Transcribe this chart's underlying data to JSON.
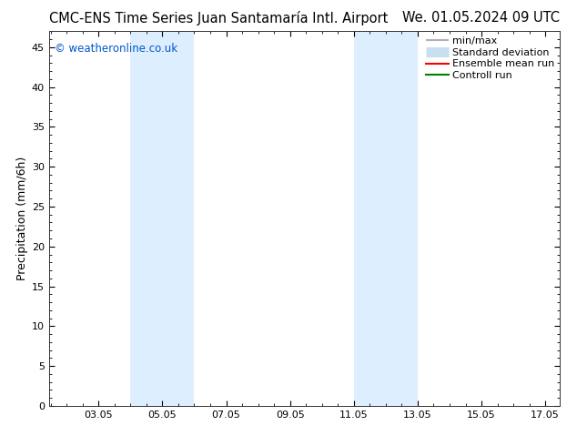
{
  "title_left": "CMC-ENS Time Series Juan Santamaría Intl. Airport",
  "title_right": "We. 01.05.2024 09 UTC",
  "ylabel": "Precipitation (mm/6h)",
  "watermark": "© weatheronline.co.uk",
  "xlim_start": 1.5,
  "xlim_end": 17.5,
  "ylim_bottom": 0,
  "ylim_top": 47,
  "yticks": [
    0,
    5,
    10,
    15,
    20,
    25,
    30,
    35,
    40,
    45
  ],
  "xtick_labels": [
    "03.05",
    "05.05",
    "07.05",
    "09.05",
    "11.05",
    "13.05",
    "15.05",
    "17.05"
  ],
  "xtick_positions": [
    3.05,
    5.05,
    7.05,
    9.05,
    11.05,
    13.05,
    15.05,
    17.05
  ],
  "shaded_regions": [
    {
      "xmin": 4.05,
      "xmax": 6.05
    },
    {
      "xmin": 11.05,
      "xmax": 13.05
    }
  ],
  "shade_color": "#ddeeff",
  "legend_entries": [
    {
      "label": "min/max",
      "color": "#b0b0b0",
      "lw": 1.5
    },
    {
      "label": "Standard deviation",
      "color": "#c8dff0",
      "lw": 8
    },
    {
      "label": "Ensemble mean run",
      "color": "#ff0000",
      "lw": 1.5
    },
    {
      "label": "Controll run",
      "color": "#008000",
      "lw": 1.5
    }
  ],
  "background_color": "#ffffff",
  "watermark_color": "#0055cc",
  "title_fontsize": 10.5,
  "ylabel_fontsize": 9,
  "tick_fontsize": 8,
  "legend_fontsize": 8,
  "watermark_fontsize": 8.5
}
